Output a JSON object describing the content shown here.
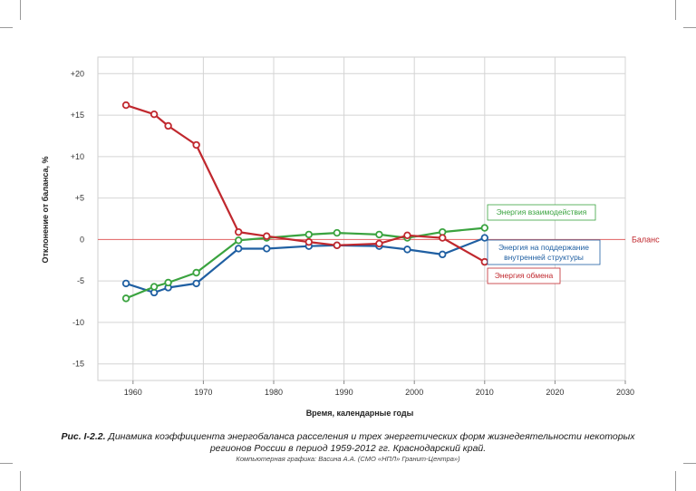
{
  "chart_data": {
    "type": "line",
    "xlabel": "Время, календарные годы",
    "ylabel": "Отклонение от баланса, %",
    "xlim": [
      1955,
      2030
    ],
    "ylim": [
      -17,
      22
    ],
    "x_ticks": [
      "1960",
      "1970",
      "1980",
      "1990",
      "2000",
      "2010",
      "2020",
      "2030"
    ],
    "x_tick_values": [
      1960,
      1970,
      1980,
      1990,
      2000,
      2010,
      2020,
      2030
    ],
    "y_ticks": [
      "+20",
      "+15",
      "+10",
      "+5",
      "0",
      "-5",
      "-10",
      "-15"
    ],
    "y_tick_values": [
      20,
      15,
      10,
      5,
      0,
      -5,
      -10,
      -15
    ],
    "grid": true,
    "reference_line": {
      "y": 0,
      "label": "Баланс",
      "color": "#e06060"
    },
    "series": [
      {
        "name": "Энергия обмена",
        "color": "#c0282e",
        "x": [
          1959,
          1963,
          1965,
          1969,
          1975,
          1979,
          1985,
          1989,
          1995,
          1999,
          2004,
          2010
        ],
        "y": [
          16.2,
          15.1,
          13.7,
          11.4,
          0.9,
          0.4,
          -0.3,
          -0.7,
          -0.5,
          0.5,
          0.2,
          -2.7
        ]
      },
      {
        "name": "Энергия взаимодействия",
        "color": "#3aa33f",
        "x": [
          1959,
          1963,
          1965,
          1969,
          1975,
          1979,
          1985,
          1989,
          1995,
          1999,
          2004,
          2010
        ],
        "y": [
          -7.1,
          -5.7,
          -5.2,
          -4.0,
          -0.1,
          0.2,
          0.6,
          0.8,
          0.6,
          0.2,
          0.9,
          1.4
        ]
      },
      {
        "name": "Энергия на поддержание внутренней структуры",
        "color": "#1f5fa2",
        "x": [
          1959,
          1963,
          1965,
          1969,
          1975,
          1979,
          1985,
          1989,
          1995,
          1999,
          2004,
          2010
        ],
        "y": [
          -5.3,
          -6.4,
          -5.8,
          -5.3,
          -1.1,
          -1.1,
          -0.8,
          -0.7,
          -0.8,
          -1.2,
          -1.8,
          0.2
        ]
      }
    ],
    "legend_labels": [
      {
        "series": 1,
        "lines": [
          "Энергия взаимодействия"
        ]
      },
      {
        "series": 2,
        "lines": [
          "Энергия на поддержание",
          "внутренней структуры"
        ]
      },
      {
        "series": 0,
        "lines": [
          "Энергия обмена"
        ]
      }
    ]
  },
  "caption": {
    "figure_label": "Рис. I-2.2.",
    "line1": "Динамика коэффициента энергобаланса расселения и трех энергетических форм жизнедеятельности некоторых",
    "line2": "регионов России в период 1959-2012 гг. Краснодарский край.",
    "credit": "Компьютерная графика: Васина А.А. (СМО «НПЛ» Гранит-Центра»)"
  }
}
